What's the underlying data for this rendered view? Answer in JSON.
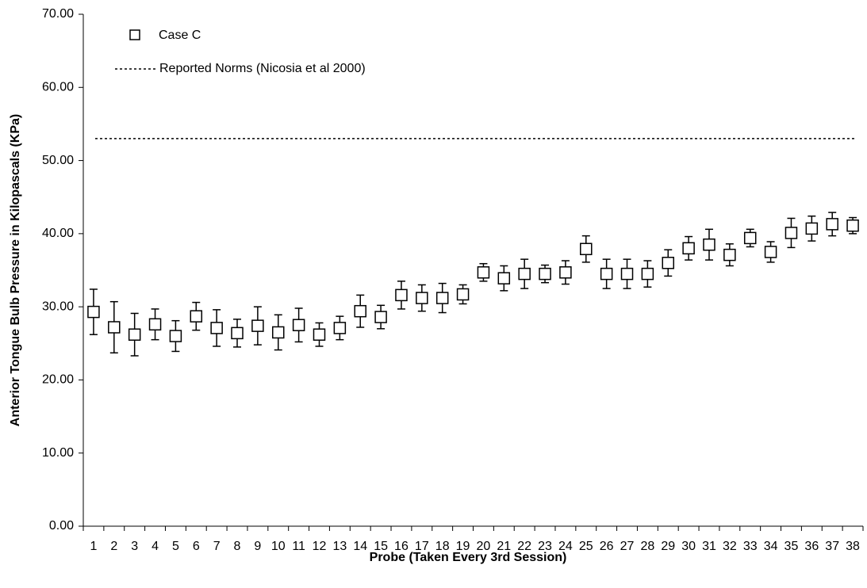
{
  "chart_data": {
    "type": "scatter",
    "xlabel": "Probe (Taken Every 3rd Session)",
    "ylabel": "Anterior Tongue Bulb Pressure in Kilopascals (KPa)",
    "categories": [
      "1",
      "2",
      "3",
      "4",
      "5",
      "6",
      "7",
      "8",
      "9",
      "10",
      "11",
      "12",
      "13",
      "14",
      "15",
      "16",
      "17",
      "18",
      "19",
      "20",
      "21",
      "22",
      "23",
      "24",
      "25",
      "26",
      "27",
      "28",
      "29",
      "30",
      "31",
      "32",
      "33",
      "34",
      "35",
      "36",
      "37",
      "38"
    ],
    "series": [
      {
        "name": "Case C",
        "color": "#000000",
        "values": [
          29.3,
          27.2,
          26.2,
          27.6,
          26.0,
          28.7,
          27.1,
          26.4,
          27.4,
          26.5,
          27.5,
          26.2,
          27.1,
          29.4,
          28.6,
          31.6,
          31.2,
          31.2,
          31.7,
          34.7,
          33.9,
          34.5,
          34.5,
          34.7,
          37.9,
          34.5,
          34.5,
          34.5,
          36.0,
          38.0,
          38.5,
          37.1,
          39.4,
          37.5,
          40.1,
          40.7,
          41.3,
          41.1
        ],
        "errors": [
          3.1,
          3.5,
          2.9,
          2.1,
          2.1,
          1.9,
          2.5,
          1.9,
          2.6,
          2.4,
          2.3,
          1.6,
          1.6,
          2.2,
          1.6,
          1.9,
          1.8,
          2.0,
          1.3,
          1.2,
          1.7,
          2.0,
          1.2,
          1.6,
          1.8,
          2.0,
          2.0,
          1.8,
          1.8,
          1.6,
          2.1,
          1.5,
          1.2,
          1.4,
          2.0,
          1.7,
          1.6,
          1.1
        ]
      }
    ],
    "reference_lines": [
      {
        "name": "Reported Norms (Nicosia et al 2000)",
        "value": 53.0,
        "style": "dotted",
        "color": "#000000"
      }
    ],
    "ylim": [
      0,
      70
    ],
    "yticks": [
      {
        "value": 0,
        "label": "0.00"
      },
      {
        "value": 10,
        "label": "10.00"
      },
      {
        "value": 20,
        "label": "20.00"
      },
      {
        "value": 30,
        "label": "30.00"
      },
      {
        "value": 40,
        "label": "40.00"
      },
      {
        "value": 50,
        "label": "50.00"
      },
      {
        "value": 60,
        "label": "60.00"
      },
      {
        "value": 70,
        "label": "70.00"
      }
    ],
    "legend": "top-left"
  }
}
